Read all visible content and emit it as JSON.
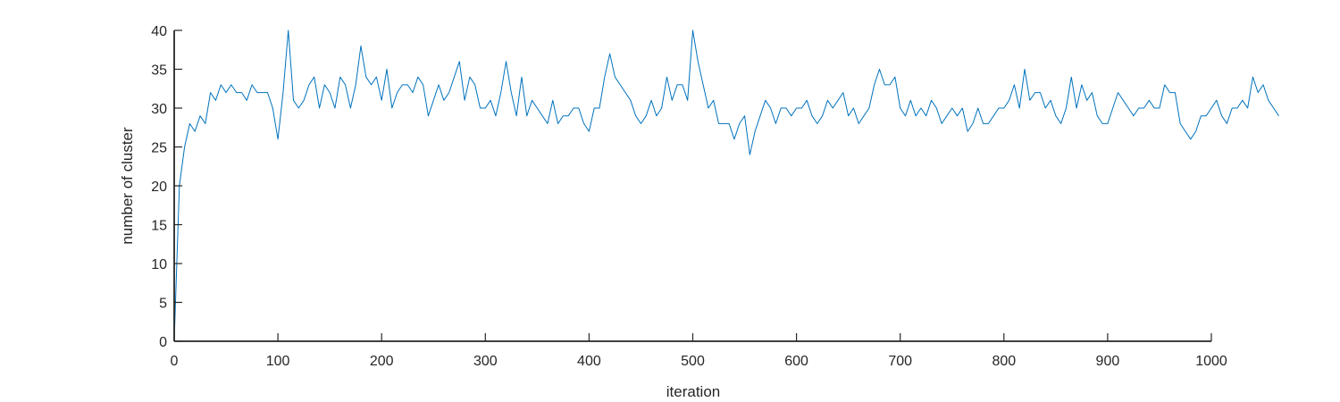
{
  "chart_data": {
    "type": "line",
    "title": "",
    "xlabel": "iteration",
    "ylabel": "number of cluster",
    "xlim": [
      0,
      1000
    ],
    "ylim": [
      0,
      40
    ],
    "xticks": [
      "0",
      "100",
      "200",
      "300",
      "400",
      "500",
      "600",
      "700",
      "800",
      "900",
      "1000"
    ],
    "yticks": [
      "0",
      "5",
      "10",
      "15",
      "20",
      "25",
      "30",
      "35",
      "40"
    ],
    "grid": false,
    "legend": "none",
    "line_color": "#0072BD",
    "series": [
      {
        "x_start": 0,
        "x_step": 5,
        "values": [
          0,
          20,
          25,
          28,
          27,
          29,
          28,
          32,
          31,
          33,
          32,
          33,
          32,
          32,
          31,
          33,
          32,
          32,
          32,
          30,
          26,
          32,
          40,
          31,
          30,
          31,
          33,
          34,
          30,
          33,
          32,
          30,
          34,
          33,
          30,
          33,
          38,
          34,
          33,
          34,
          31,
          35,
          30,
          32,
          33,
          33,
          32,
          34,
          33,
          29,
          31,
          33,
          31,
          32,
          34,
          36,
          31,
          34,
          33,
          30,
          30,
          31,
          29,
          32,
          36,
          32,
          29,
          34,
          29,
          31,
          30,
          29,
          28,
          31,
          28,
          29,
          29,
          30,
          30,
          28,
          27,
          30,
          30,
          34,
          37,
          34,
          33,
          32,
          31,
          29,
          28,
          29,
          31,
          29,
          30,
          34,
          31,
          33,
          33,
          31,
          40,
          36,
          33,
          30,
          31,
          28,
          28,
          28,
          26,
          28,
          29,
          24,
          27,
          29,
          31,
          30,
          28,
          30,
          30,
          29,
          30,
          30,
          31,
          29,
          28,
          29,
          31,
          30,
          31,
          32,
          29,
          30,
          28,
          29,
          30,
          33,
          35,
          33,
          33,
          34,
          30,
          29,
          31,
          29,
          30,
          29,
          31,
          30,
          28,
          29,
          30,
          29,
          30,
          27,
          28,
          30,
          28,
          28,
          29,
          30,
          30,
          31,
          33,
          30,
          35,
          31,
          32,
          32,
          30,
          31,
          29,
          28,
          30,
          34,
          30,
          33,
          31,
          32,
          29,
          28,
          28,
          30,
          32,
          31,
          30,
          29,
          30,
          30,
          31,
          30,
          30,
          33,
          32,
          32,
          28,
          27,
          26,
          27,
          29,
          29,
          30,
          31,
          29,
          28,
          30,
          30,
          31,
          30,
          34,
          32,
          33,
          31,
          30,
          29
        ]
      }
    ]
  }
}
